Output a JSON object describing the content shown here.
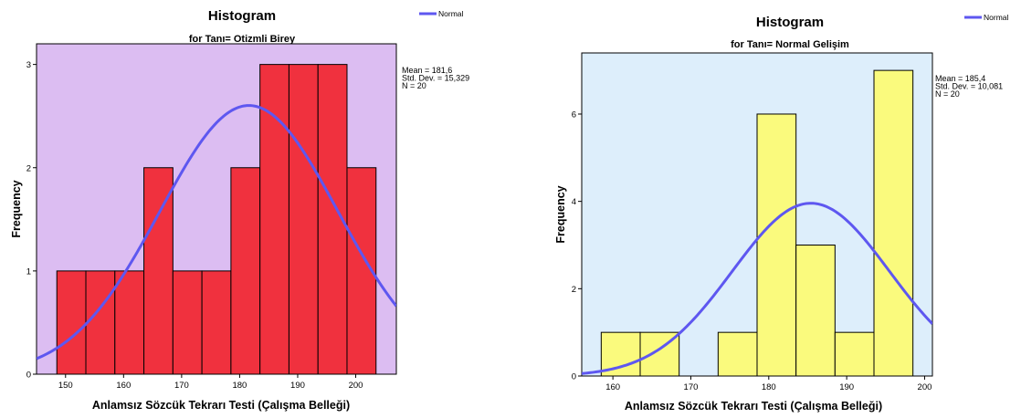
{
  "chart_data": [
    {
      "type": "bar",
      "title": "Histogram",
      "subtitle": "for Tanı= Otizmli Birey",
      "xlabel": "Anlamsız Sözcük Tekrarı Testi (Çalışma Belleği)",
      "ylabel": "Frequency",
      "bin_edges": [
        148.5,
        153.5,
        158.5,
        163.5,
        168.5,
        173.5,
        178.5,
        183.5,
        188.5,
        193.5,
        198.5,
        203.5
      ],
      "values": [
        1,
        1,
        1,
        2,
        1,
        1,
        2,
        3,
        3,
        3,
        2
      ],
      "xlim": [
        145,
        207
      ],
      "ylim": [
        0,
        3.2
      ],
      "xticks": [
        150,
        160,
        170,
        180,
        190,
        200
      ],
      "yticks": [
        0,
        1,
        2,
        3
      ],
      "bar_color": "#f0313e",
      "plot_bg": "#dcbdf2",
      "curve_color": "#5e57f0",
      "stats": {
        "mean_label": "Mean = 181,6",
        "sd_label": "Std. Dev. = 15,329",
        "n_label": "N = 20"
      },
      "normal_curve": {
        "mean": 181.6,
        "sd": 15.329,
        "n": 20,
        "bin_width": 5
      },
      "legend": {
        "label": "Normal"
      }
    },
    {
      "type": "bar",
      "title": "Histogram",
      "subtitle": "for Tanı= Normal Gelişim",
      "xlabel": "Anlamsız Sözcük Tekrarı Testi (Çalışma Belleği)",
      "ylabel": "Frequency",
      "bin_edges": [
        158.5,
        163.5,
        168.5,
        173.5,
        178.5,
        183.5,
        188.5,
        193.5,
        198.5
      ],
      "values": [
        1,
        1,
        0,
        1,
        6,
        3,
        1,
        7
      ],
      "xlim": [
        156,
        201
      ],
      "ylim": [
        0,
        7.4
      ],
      "xticks": [
        160,
        170,
        180,
        190,
        200
      ],
      "yticks": [
        0,
        2,
        4,
        6
      ],
      "bar_color": "#fafa7d",
      "plot_bg": "#ddeefb",
      "curve_color": "#5e57f0",
      "stats": {
        "mean_label": "Mean = 185,4",
        "sd_label": "Std. Dev. = 10,081",
        "n_label": "N = 20"
      },
      "normal_curve": {
        "mean": 185.4,
        "sd": 10.081,
        "n": 20,
        "bin_width": 5
      },
      "legend": {
        "label": "Normal"
      }
    }
  ]
}
